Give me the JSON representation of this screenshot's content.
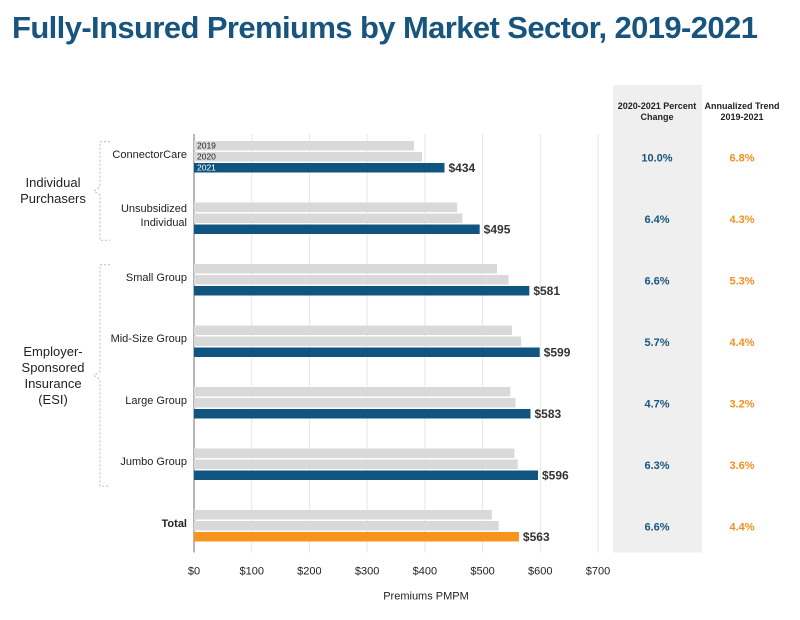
{
  "chart_data": {
    "type": "bar",
    "orientation": "horizontal",
    "title": "Fully-Insured Premiums by Market Sector, 2019-2021",
    "x_label": "Premiums PMPM",
    "categories": [
      "ConnectorCare",
      "Unsubsidized Individual",
      "Small Group",
      "Mid-Size Group",
      "Large Group",
      "Jumbo Group",
      "Total"
    ],
    "groups": [
      {
        "label": "Individual Purchasers",
        "start": 0,
        "end": 1
      },
      {
        "label": "Employer-Sponsored Insurance (ESI)",
        "start": 2,
        "end": 5
      }
    ],
    "series": [
      {
        "name": "2019",
        "color": "#d9d9d9",
        "values": [
          381,
          456,
          525,
          551,
          548,
          555,
          516
        ]
      },
      {
        "name": "2020",
        "color": "#d9d9d9",
        "values": [
          395,
          465,
          545,
          567,
          557,
          561,
          528
        ]
      },
      {
        "name": "2021",
        "color": "#0f5580",
        "colors": [
          "#0f5580",
          "#0f5580",
          "#0f5580",
          "#0f5580",
          "#0f5580",
          "#0f5580",
          "#f7941d"
        ],
        "values": [
          434,
          495,
          581,
          599,
          583,
          596,
          563
        ],
        "value_labels": [
          "$434",
          "$495",
          "$581",
          "$599",
          "$583",
          "$596",
          "$563"
        ]
      }
    ],
    "xlim": [
      0,
      700
    ],
    "xticks": [
      {
        "value": 0,
        "label": "$0"
      },
      {
        "value": 100,
        "label": "$100"
      },
      {
        "value": 200,
        "label": "$200"
      },
      {
        "value": 300,
        "label": "$300"
      },
      {
        "value": 400,
        "label": "$400"
      },
      {
        "value": 500,
        "label": "$500"
      },
      {
        "value": 600,
        "label": "$600"
      },
      {
        "value": 700,
        "label": "$700"
      }
    ],
    "grid": true,
    "table": [
      {
        "header": "2020-2021 Percent Change",
        "color": "#17557f",
        "shaded": true,
        "values": [
          "10.0%",
          "6.4%",
          "6.6%",
          "5.7%",
          "4.7%",
          "6.3%",
          "6.6%"
        ]
      },
      {
        "header": "Annualized Trend 2019-2021",
        "color": "#f0901e",
        "shaded": false,
        "values": [
          "6.8%",
          "4.3%",
          "5.3%",
          "4.4%",
          "3.2%",
          "3.6%",
          "4.4%"
        ]
      }
    ]
  }
}
